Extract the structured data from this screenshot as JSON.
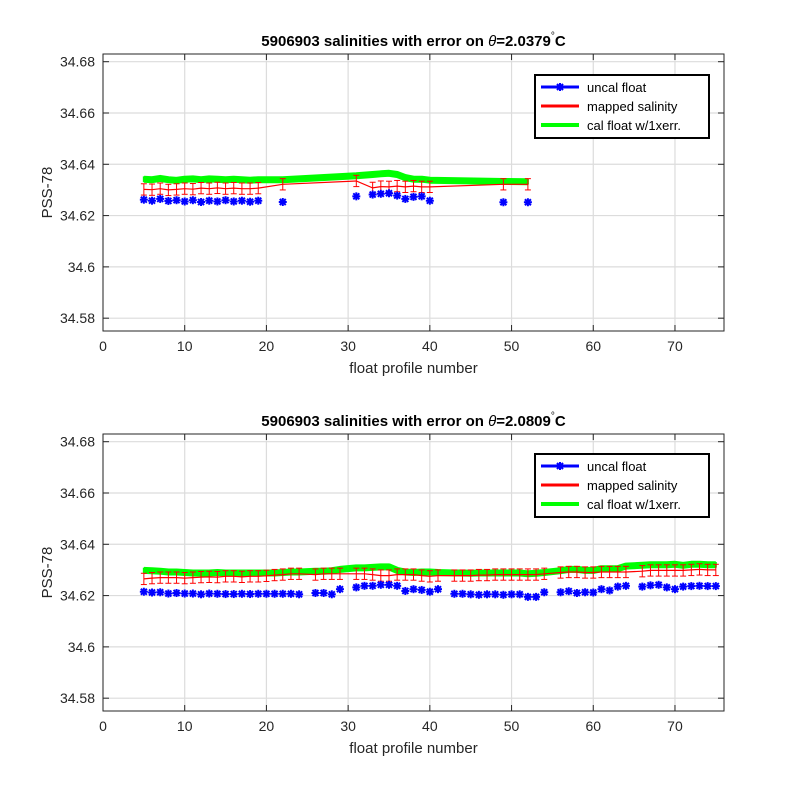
{
  "chart_data": [
    {
      "type": "line",
      "title_prefix": "5906903 salinities with error on ",
      "title_theta": "θ",
      "title_value": "=2.0379",
      "title_degree": "°",
      "title_unit": "C",
      "xlabel": "float profile number",
      "ylabel": "PSS-78",
      "xlim": [
        0,
        76
      ],
      "ylim": [
        34.575,
        34.683
      ],
      "xticks": [
        0,
        10,
        20,
        30,
        40,
        50,
        60,
        70
      ],
      "yticks": [
        34.58,
        34.6,
        34.62,
        34.64,
        34.66,
        34.68
      ],
      "ytick_labels": [
        "34.58",
        "34.6",
        "34.62",
        "34.64",
        "34.66",
        "34.68"
      ],
      "grid": true,
      "legend_position": "top-right",
      "legend": [
        "uncal float",
        "mapped salinity",
        "cal float w/1xerr."
      ],
      "colors": {
        "uncal": "#0000ff",
        "mapped": "#ff0000",
        "cal": "#00ff00"
      },
      "mapped_error": 0.0022,
      "cal_error": 0.0011,
      "series": [
        {
          "name": "uncal float",
          "x": [
            5,
            6,
            7,
            8,
            9,
            10,
            11,
            12,
            13,
            14,
            15,
            16,
            17,
            18,
            19,
            22,
            31,
            33,
            34,
            35,
            36,
            37,
            38,
            39,
            40,
            49,
            52
          ],
          "values": [
            34.6262,
            34.6258,
            34.6265,
            34.6257,
            34.626,
            34.6255,
            34.626,
            34.6253,
            34.6258,
            34.6255,
            34.626,
            34.6255,
            34.6258,
            34.6254,
            34.6258,
            34.6253,
            34.6275,
            34.6282,
            34.6285,
            34.6287,
            34.6278,
            34.6265,
            34.6273,
            34.6275,
            34.6258,
            34.6252,
            34.6252
          ]
        },
        {
          "name": "mapped salinity",
          "x": [
            5,
            6,
            7,
            8,
            9,
            10,
            11,
            12,
            13,
            14,
            15,
            16,
            17,
            18,
            19,
            22,
            31,
            33,
            34,
            35,
            36,
            37,
            38,
            39,
            40,
            49,
            52
          ],
          "values": [
            34.6302,
            34.6301,
            34.6305,
            34.63,
            34.6302,
            34.6305,
            34.6303,
            34.6307,
            34.6305,
            34.6308,
            34.6305,
            34.6307,
            34.6305,
            34.6305,
            34.6307,
            34.6322,
            34.6335,
            34.6308,
            34.6313,
            34.6312,
            34.6315,
            34.6312,
            34.6315,
            34.6312,
            34.6312,
            34.6322,
            34.6322
          ]
        },
        {
          "name": "cal float w/1xerr.",
          "x": [
            5,
            6,
            7,
            8,
            9,
            10,
            11,
            12,
            13,
            14,
            15,
            16,
            17,
            18,
            19,
            22,
            31,
            33,
            34,
            35,
            36,
            37,
            38,
            39,
            40,
            49,
            52
          ],
          "values": [
            34.6342,
            34.634,
            34.6345,
            34.634,
            34.6337,
            34.6342,
            34.6343,
            34.634,
            34.6343,
            34.6342,
            34.634,
            34.6342,
            34.634,
            34.6338,
            34.634,
            34.634,
            34.6355,
            34.636,
            34.6363,
            34.6365,
            34.636,
            34.6348,
            34.6342,
            34.6342,
            34.6338,
            34.6333,
            34.6332
          ]
        }
      ]
    },
    {
      "type": "line",
      "title_prefix": "5906903 salinities with error on ",
      "title_theta": "θ",
      "title_value": "=2.0809",
      "title_degree": "°",
      "title_unit": "C",
      "xlabel": "float profile number",
      "ylabel": "PSS-78",
      "xlim": [
        0,
        76
      ],
      "ylim": [
        34.575,
        34.683
      ],
      "xticks": [
        0,
        10,
        20,
        30,
        40,
        50,
        60,
        70
      ],
      "yticks": [
        34.58,
        34.6,
        34.62,
        34.64,
        34.66,
        34.68
      ],
      "ytick_labels": [
        "34.58",
        "34.6",
        "34.62",
        "34.64",
        "34.66",
        "34.68"
      ],
      "grid": true,
      "legend_position": "top-right",
      "legend": [
        "uncal float",
        "mapped salinity",
        "cal float w/1xerr."
      ],
      "colors": {
        "uncal": "#0000ff",
        "mapped": "#ff0000",
        "cal": "#00ff00"
      },
      "mapped_error": 0.0022,
      "cal_error": 0.0011,
      "series": [
        {
          "name": "uncal float",
          "x": [
            5,
            6,
            7,
            8,
            9,
            10,
            11,
            12,
            13,
            14,
            15,
            16,
            17,
            18,
            19,
            20,
            21,
            22,
            23,
            24,
            26,
            27,
            28,
            29,
            31,
            32,
            33,
            34,
            35,
            36,
            37,
            38,
            39,
            40,
            41,
            43,
            44,
            45,
            46,
            47,
            48,
            49,
            50,
            51,
            52,
            53,
            54,
            56,
            57,
            58,
            59,
            60,
            61,
            62,
            63,
            64,
            66,
            67,
            68,
            69,
            70,
            71,
            72,
            73,
            74,
            75
          ],
          "values": [
            34.6215,
            34.6212,
            34.6213,
            34.6208,
            34.621,
            34.6208,
            34.6208,
            34.6205,
            34.6208,
            34.6207,
            34.6206,
            34.6206,
            34.6207,
            34.6206,
            34.6207,
            34.6207,
            34.6207,
            34.6207,
            34.6207,
            34.6205,
            34.621,
            34.621,
            34.6205,
            34.6225,
            34.6232,
            34.6238,
            34.6238,
            34.6242,
            34.6242,
            34.6238,
            34.6218,
            34.6225,
            34.6222,
            34.6215,
            34.6225,
            34.6207,
            34.6207,
            34.6205,
            34.6203,
            34.6205,
            34.6205,
            34.6203,
            34.6205,
            34.6205,
            34.6195,
            34.6195,
            34.6213,
            34.6213,
            34.6217,
            34.621,
            34.6213,
            34.6212,
            34.6225,
            34.622,
            34.6235,
            34.6238,
            34.6235,
            34.624,
            34.6242,
            34.6232,
            34.6225,
            34.6235,
            34.6237,
            34.6238,
            34.6237,
            34.6237
          ]
        },
        {
          "name": "mapped salinity",
          "x": [
            5,
            6,
            7,
            8,
            9,
            10,
            11,
            12,
            13,
            14,
            15,
            16,
            17,
            18,
            19,
            20,
            21,
            22,
            23,
            24,
            26,
            27,
            28,
            29,
            31,
            32,
            33,
            34,
            35,
            36,
            37,
            38,
            39,
            40,
            41,
            43,
            44,
            45,
            46,
            47,
            48,
            49,
            50,
            51,
            52,
            53,
            54,
            56,
            57,
            58,
            59,
            60,
            61,
            62,
            63,
            64,
            66,
            67,
            68,
            69,
            70,
            71,
            72,
            73,
            74,
            75
          ],
          "values": [
            34.6265,
            34.6268,
            34.627,
            34.627,
            34.627,
            34.6268,
            34.627,
            34.6272,
            34.6273,
            34.6272,
            34.6275,
            34.6275,
            34.6273,
            34.6275,
            34.6275,
            34.6277,
            34.628,
            34.6282,
            34.6285,
            34.6285,
            34.6282,
            34.6285,
            34.6285,
            34.6285,
            34.6285,
            34.6285,
            34.6282,
            34.6278,
            34.6278,
            34.6282,
            34.6282,
            34.6282,
            34.6278,
            34.6275,
            34.6278,
            34.6278,
            34.6278,
            34.6278,
            34.628,
            34.628,
            34.6282,
            34.6282,
            34.6282,
            34.6282,
            34.6282,
            34.6282,
            34.6285,
            34.629,
            34.6292,
            34.6292,
            34.629,
            34.629,
            34.6292,
            34.6292,
            34.6292,
            34.6292,
            34.6295,
            34.6298,
            34.6298,
            34.6298,
            34.6298,
            34.6298,
            34.63,
            34.6302,
            34.63,
            34.63
          ]
        },
        {
          "name": "cal float w/1xerr.",
          "x": [
            5,
            6,
            7,
            8,
            9,
            10,
            11,
            12,
            13,
            14,
            15,
            16,
            17,
            18,
            19,
            20,
            21,
            22,
            23,
            24,
            26,
            27,
            28,
            29,
            31,
            32,
            33,
            34,
            35,
            36,
            37,
            38,
            39,
            40,
            41,
            43,
            44,
            45,
            46,
            47,
            48,
            49,
            50,
            51,
            52,
            53,
            54,
            56,
            57,
            58,
            59,
            60,
            61,
            62,
            63,
            64,
            66,
            67,
            68,
            69,
            70,
            71,
            72,
            73,
            74,
            75
          ],
          "values": [
            34.6298,
            34.6297,
            34.6295,
            34.6292,
            34.6292,
            34.629,
            34.6288,
            34.6288,
            34.6288,
            34.629,
            34.6288,
            34.6288,
            34.6288,
            34.6288,
            34.6288,
            34.6288,
            34.6288,
            34.629,
            34.6292,
            34.6292,
            34.6295,
            34.6295,
            34.6297,
            34.6302,
            34.6308,
            34.6308,
            34.631,
            34.6312,
            34.6312,
            34.6298,
            34.6292,
            34.629,
            34.6292,
            34.6292,
            34.629,
            34.6288,
            34.6288,
            34.6287,
            34.6288,
            34.6288,
            34.6288,
            34.6288,
            34.6288,
            34.6288,
            34.6285,
            34.6287,
            34.629,
            34.6297,
            34.6302,
            34.6302,
            34.6298,
            34.6298,
            34.6305,
            34.6305,
            34.6305,
            34.6315,
            34.6318,
            34.632,
            34.632,
            34.632,
            34.6322,
            34.6318,
            34.6322,
            34.6322,
            34.632,
            34.632
          ]
        }
      ]
    }
  ]
}
